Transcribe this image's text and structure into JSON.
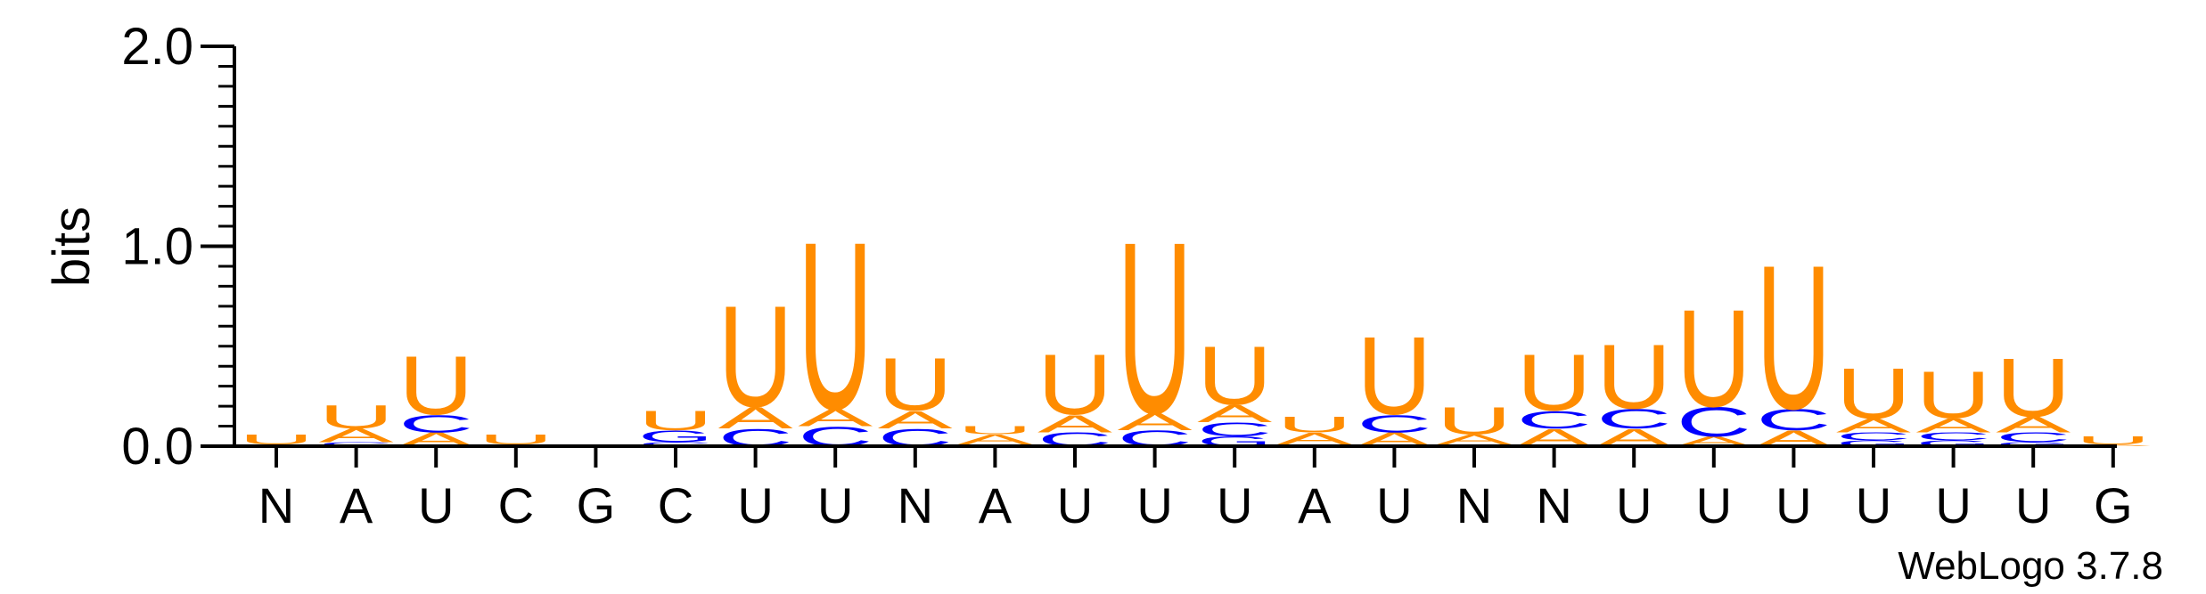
{
  "chart_data": {
    "type": "sequence-logo",
    "ylabel": "bits",
    "ylim": [
      0,
      2.0
    ],
    "yticks": [
      {
        "value": 0.0,
        "label": "0.0"
      },
      {
        "value": 1.0,
        "label": "1.0"
      },
      {
        "value": 2.0,
        "label": "2.0"
      }
    ],
    "x_labels": [
      "N",
      "A",
      "U",
      "C",
      "G",
      "C",
      "U",
      "U",
      "N",
      "A",
      "U",
      "U",
      "U",
      "A",
      "U",
      "N",
      "N",
      "U",
      "U",
      "U",
      "U",
      "U",
      "U",
      "G"
    ],
    "colors": {
      "U": "#ff8c00",
      "A": "#ff8c00",
      "C": "#0000ff",
      "G": "#0000ff"
    },
    "stacks": [
      {
        "position": 1,
        "letters": [
          {
            "base": "A",
            "height": 0.01
          },
          {
            "base": "U",
            "height": 0.05
          }
        ]
      },
      {
        "position": 2,
        "letters": [
          {
            "base": "C",
            "height": 0.02
          },
          {
            "base": "A",
            "height": 0.07
          },
          {
            "base": "U",
            "height": 0.12
          }
        ]
      },
      {
        "position": 3,
        "letters": [
          {
            "base": "A",
            "height": 0.07
          },
          {
            "base": "C",
            "height": 0.09
          },
          {
            "base": "U",
            "height": 0.3
          }
        ]
      },
      {
        "position": 4,
        "letters": [
          {
            "base": "A",
            "height": 0.01
          },
          {
            "base": "U",
            "height": 0.05
          }
        ]
      },
      {
        "position": 5,
        "letters": []
      },
      {
        "position": 6,
        "letters": [
          {
            "base": "C",
            "height": 0.02
          },
          {
            "base": "G",
            "height": 0.06
          },
          {
            "base": "U",
            "height": 0.1
          }
        ]
      },
      {
        "position": 7,
        "letters": [
          {
            "base": "C",
            "height": 0.09
          },
          {
            "base": "A",
            "height": 0.11
          },
          {
            "base": "U",
            "height": 0.52
          }
        ]
      },
      {
        "position": 8,
        "letters": [
          {
            "base": "C",
            "height": 0.1
          },
          {
            "base": "A",
            "height": 0.09
          },
          {
            "base": "U",
            "height": 0.86
          }
        ]
      },
      {
        "position": 9,
        "letters": [
          {
            "base": "C",
            "height": 0.09
          },
          {
            "base": "A",
            "height": 0.09
          },
          {
            "base": "U",
            "height": 0.27
          }
        ]
      },
      {
        "position": 10,
        "letters": [
          {
            "base": "C",
            "height": 0.01
          },
          {
            "base": "A",
            "height": 0.05
          },
          {
            "base": "U",
            "height": 0.04
          }
        ]
      },
      {
        "position": 11,
        "letters": [
          {
            "base": "C",
            "height": 0.07
          },
          {
            "base": "A",
            "height": 0.09
          },
          {
            "base": "U",
            "height": 0.31
          }
        ]
      },
      {
        "position": 12,
        "letters": [
          {
            "base": "C",
            "height": 0.08
          },
          {
            "base": "A",
            "height": 0.09
          },
          {
            "base": "U",
            "height": 0.88
          }
        ]
      },
      {
        "position": 13,
        "letters": [
          {
            "base": "G",
            "height": 0.05
          },
          {
            "base": "C",
            "height": 0.07
          },
          {
            "base": "A",
            "height": 0.09
          },
          {
            "base": "U",
            "height": 0.3
          }
        ]
      },
      {
        "position": 14,
        "letters": [
          {
            "base": "C",
            "height": 0.01
          },
          {
            "base": "A",
            "height": 0.06
          },
          {
            "base": "U",
            "height": 0.08
          }
        ]
      },
      {
        "position": 15,
        "letters": [
          {
            "base": "A",
            "height": 0.07
          },
          {
            "base": "C",
            "height": 0.09
          },
          {
            "base": "U",
            "height": 0.4
          }
        ]
      },
      {
        "position": 16,
        "letters": [
          {
            "base": "C",
            "height": 0.01
          },
          {
            "base": "A",
            "height": 0.05
          },
          {
            "base": "U",
            "height": 0.14
          }
        ]
      },
      {
        "position": 17,
        "letters": [
          {
            "base": "A",
            "height": 0.09
          },
          {
            "base": "C",
            "height": 0.09
          },
          {
            "base": "U",
            "height": 0.29
          }
        ]
      },
      {
        "position": 18,
        "letters": [
          {
            "base": "A",
            "height": 0.09
          },
          {
            "base": "C",
            "height": 0.1
          },
          {
            "base": "U",
            "height": 0.33
          }
        ]
      },
      {
        "position": 19,
        "letters": [
          {
            "base": "A",
            "height": 0.05
          },
          {
            "base": "C",
            "height": 0.15
          },
          {
            "base": "U",
            "height": 0.5
          }
        ]
      },
      {
        "position": 20,
        "letters": [
          {
            "base": "A",
            "height": 0.08
          },
          {
            "base": "C",
            "height": 0.11
          },
          {
            "base": "U",
            "height": 0.74
          }
        ]
      },
      {
        "position": 21,
        "letters": [
          {
            "base": "G",
            "height": 0.03
          },
          {
            "base": "C",
            "height": 0.04
          },
          {
            "base": "A",
            "height": 0.07
          },
          {
            "base": "U",
            "height": 0.26
          }
        ]
      },
      {
        "position": 22,
        "letters": [
          {
            "base": "G",
            "height": 0.03
          },
          {
            "base": "C",
            "height": 0.04
          },
          {
            "base": "A",
            "height": 0.07
          },
          {
            "base": "U",
            "height": 0.24
          }
        ]
      },
      {
        "position": 23,
        "letters": [
          {
            "base": "G",
            "height": 0.02
          },
          {
            "base": "C",
            "height": 0.05
          },
          {
            "base": "A",
            "height": 0.08
          },
          {
            "base": "U",
            "height": 0.3
          }
        ]
      },
      {
        "position": 24,
        "letters": [
          {
            "base": "A",
            "height": 0.01
          },
          {
            "base": "U",
            "height": 0.04
          }
        ]
      }
    ]
  },
  "credit": "WebLogo 3.7.8"
}
